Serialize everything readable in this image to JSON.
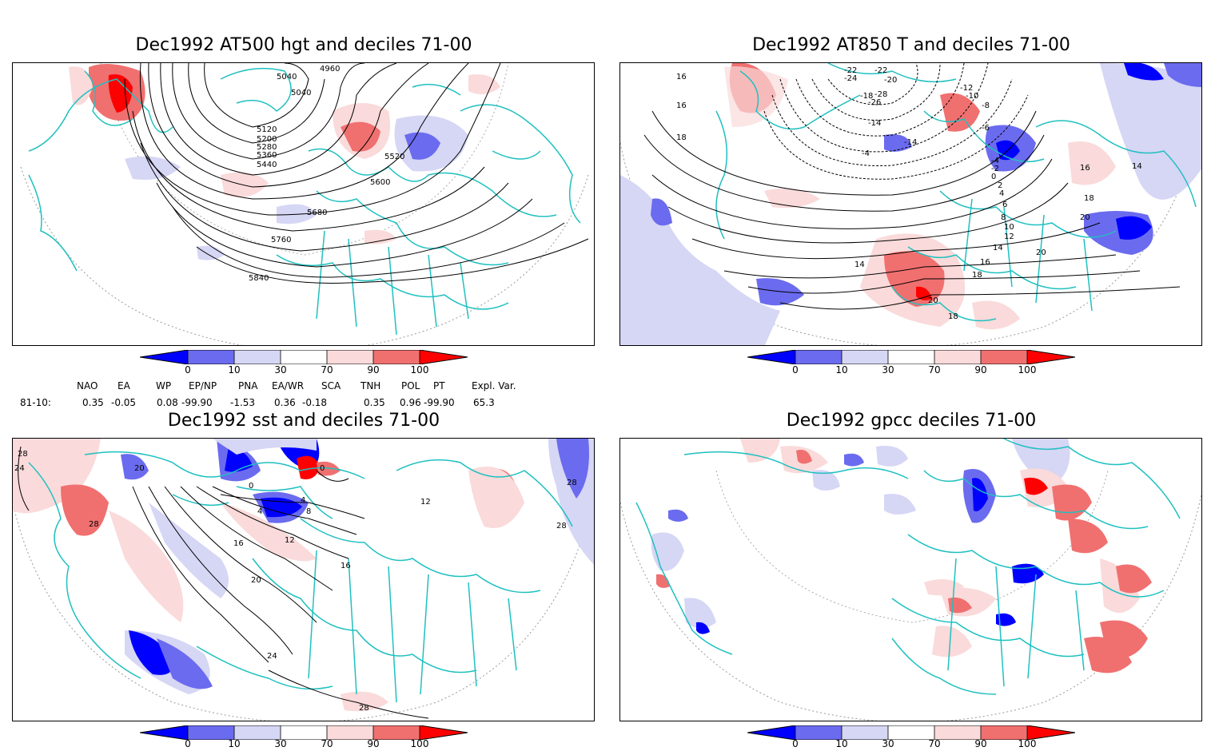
{
  "panels": [
    {
      "id": "p1",
      "title": "Dec1992 AT500 hgt and deciles 71-00",
      "contour_labels": [
        "4960",
        "5040",
        "5040",
        "5120",
        "5200",
        "5280",
        "5360",
        "5440",
        "5520",
        "5600",
        "5680",
        "5760",
        "5840"
      ]
    },
    {
      "id": "p2",
      "title": "Dec1992 AT850 T and deciles 71-00",
      "contour_labels": [
        "-22",
        "-22",
        "-24",
        "-20",
        "-18",
        "-26",
        "-28",
        "-14",
        "-12",
        "-10",
        "-8",
        "-6",
        "-4",
        "-4",
        "-2",
        "0",
        "2",
        "4",
        "6",
        "8",
        "10",
        "12",
        "14",
        "14",
        "16",
        "16",
        "16",
        "16",
        "18",
        "18",
        "18",
        "18",
        "20",
        "20",
        "20",
        "14",
        "-14"
      ]
    },
    {
      "id": "p3",
      "title": "Dec1992 sst and deciles 71-00",
      "contour_labels": [
        "24",
        "28",
        "20",
        "28",
        "0",
        "4",
        "4",
        "8",
        "0",
        "12",
        "16",
        "16",
        "20",
        "24",
        "28",
        "28",
        "28",
        "12"
      ]
    },
    {
      "id": "p4",
      "title": "Dec1992 gpcc deciles 71-00",
      "contour_labels": []
    }
  ],
  "colorbar": {
    "labels": [
      "0",
      "10",
      "30",
      "70",
      "90",
      "100"
    ],
    "colors": [
      "#0000ff",
      "#6b6bef",
      "#d6d6f5",
      "#ffffff",
      "#fadada",
      "#f07070",
      "#ff0000"
    ]
  },
  "indices": {
    "headers": [
      "NAO",
      "EA",
      "WP",
      "EP/NP",
      "PNA",
      "EA/WR",
      "SCA",
      "TNH",
      "POL",
      "PT",
      "Expl. Var."
    ],
    "row_label": "81-10:",
    "values": [
      "0.35",
      "-0.05",
      "0.08",
      "-99.90",
      "-1.53",
      "0.36",
      "-0.18",
      "0.35",
      "0.96",
      "-99.90",
      "65.3"
    ]
  }
}
